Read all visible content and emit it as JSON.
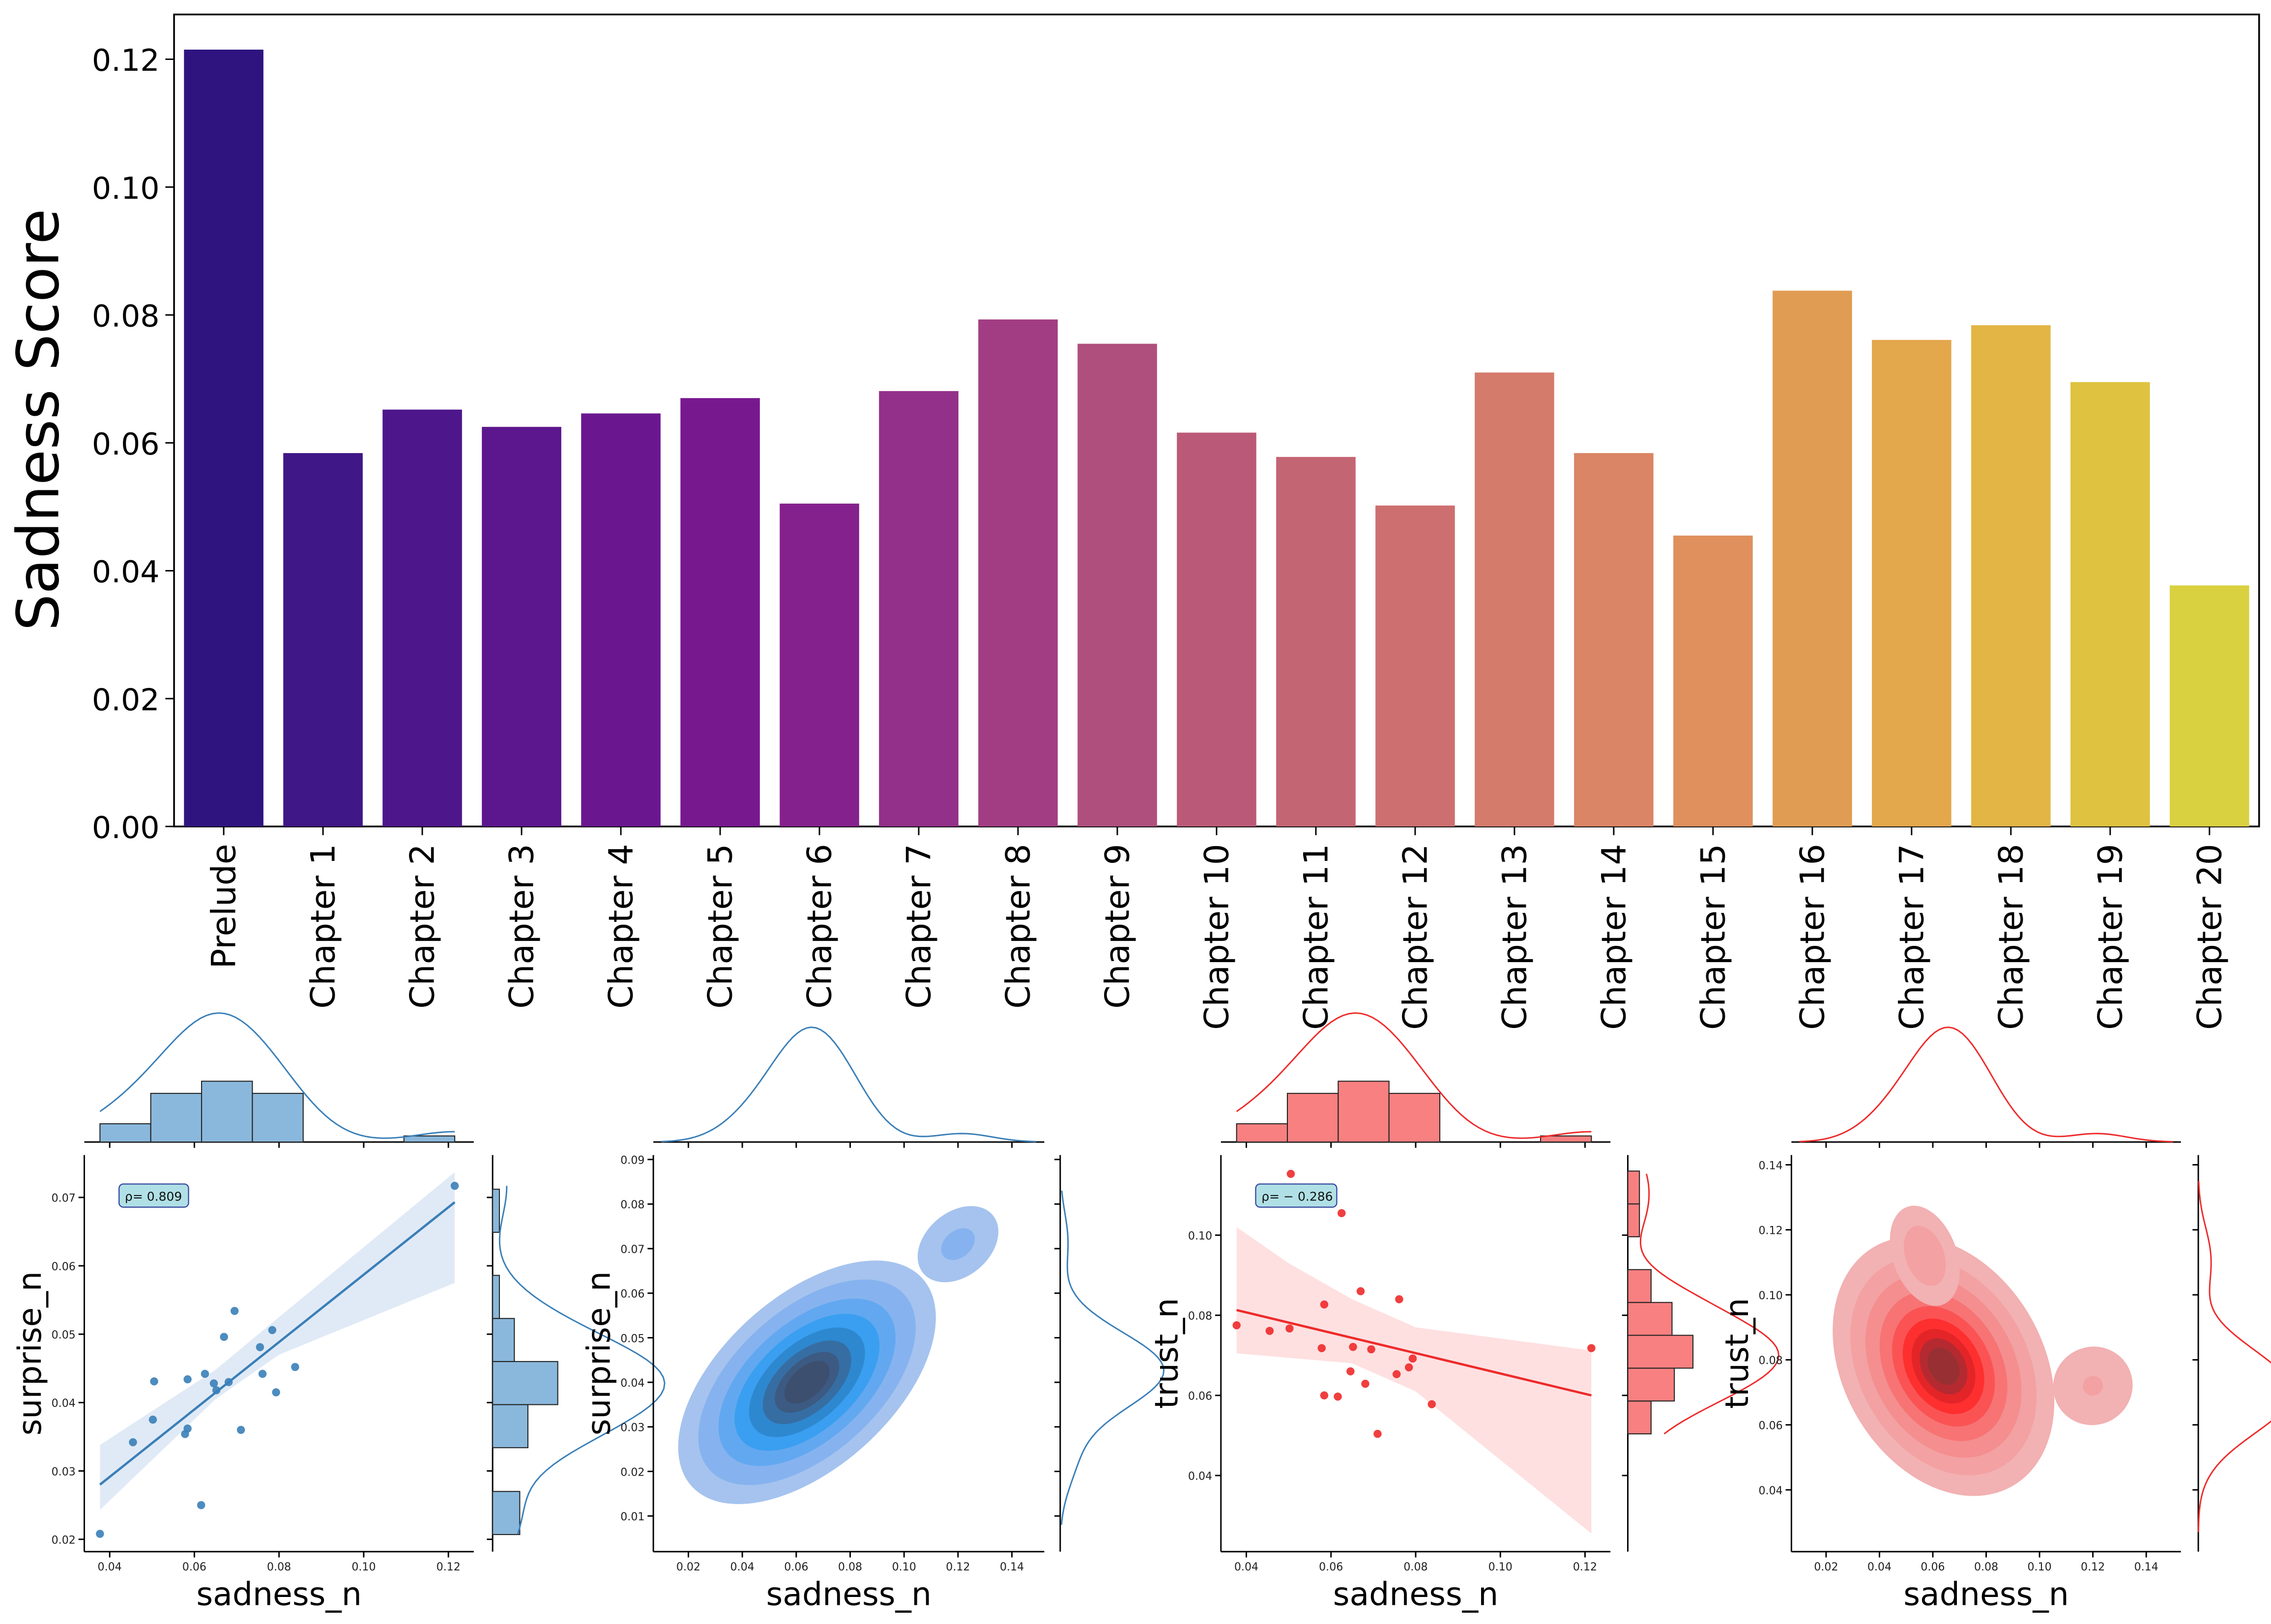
{
  "chart_data": [
    {
      "type": "bar",
      "title": "",
      "xlabel": "",
      "ylabel": "Sadness Score",
      "ylim": [
        0,
        0.127
      ],
      "yticks": [
        "0.00",
        "0.02",
        "0.04",
        "0.06",
        "0.08",
        "0.10",
        "0.12"
      ],
      "categories": [
        "Prelude",
        "Chapter 1",
        "Chapter 2",
        "Chapter 3",
        "Chapter 4",
        "Chapter 5",
        "Chapter 6",
        "Chapter 7",
        "Chapter 8",
        "Chapter 9",
        "Chapter 10",
        "Chapter 11",
        "Chapter 12",
        "Chapter 13",
        "Chapter 14",
        "Chapter 15",
        "Chapter 16",
        "Chapter 17",
        "Chapter 18",
        "Chapter 19",
        "Chapter 20"
      ],
      "values": [
        0.1215,
        0.0584,
        0.0652,
        0.0625,
        0.0646,
        0.067,
        0.0505,
        0.0681,
        0.0793,
        0.0755,
        0.0616,
        0.0578,
        0.0502,
        0.071,
        0.0584,
        0.0455,
        0.0838,
        0.0761,
        0.0784,
        0.0695,
        0.0377
      ],
      "colors": [
        "#2f1480",
        "#3f1787",
        "#4e168b",
        "#5c168e",
        "#6a178f",
        "#78188f",
        "#85218c",
        "#933089",
        "#a23d84",
        "#af4f7e",
        "#bb5a78",
        "#c46574",
        "#cd6f70",
        "#d57b6c",
        "#da8565",
        "#df905d",
        "#e19c53",
        "#e3a74c",
        "#e2b545",
        "#dfc240",
        "#d9d140"
      ]
    },
    {
      "type": "scatter",
      "panel": "regression",
      "xlabel": "sadness_n",
      "ylabel": "surprise_n",
      "xticks": [
        "0.04",
        "0.06",
        "0.08",
        "0.10",
        "0.12"
      ],
      "yticks": [
        "0.02",
        "0.03",
        "0.04",
        "0.05",
        "0.06",
        "0.07"
      ],
      "xlim": [
        0.034,
        0.126
      ],
      "ylim": [
        0.0182,
        0.0762
      ],
      "annotation": "ρ= 0.809",
      "color": "#3a7fb8",
      "x": [
        0.1215,
        0.0584,
        0.0652,
        0.0625,
        0.0646,
        0.067,
        0.0505,
        0.0681,
        0.0793,
        0.0755,
        0.0616,
        0.0578,
        0.0502,
        0.071,
        0.0584,
        0.0455,
        0.0838,
        0.0761,
        0.0784,
        0.0695,
        0.0377
      ],
      "y": [
        0.0717,
        0.0434,
        0.0418,
        0.0442,
        0.0428,
        0.0496,
        0.0431,
        0.043,
        0.0415,
        0.0481,
        0.025,
        0.0354,
        0.0375,
        0.036,
        0.0362,
        0.0342,
        0.0452,
        0.0442,
        0.0506,
        0.0534,
        0.0208
      ],
      "regression": {
        "x0": 0.0377,
        "y0": 0.028,
        "x1": 0.1215,
        "y1": 0.0693
      },
      "ci_upper": [
        [
          0.0377,
          0.0338
        ],
        [
          0.065,
          0.0448
        ],
        [
          0.08,
          0.0525
        ],
        [
          0.1215,
          0.0737
        ]
      ],
      "ci_lower": [
        [
          0.0377,
          0.0243
        ],
        [
          0.065,
          0.0405
        ],
        [
          0.08,
          0.047
        ],
        [
          0.1215,
          0.0575
        ]
      ],
      "top_hist": {
        "bins": [
          [
            0.0377,
            0.0497,
            1.5
          ],
          [
            0.0497,
            0.0617,
            4
          ],
          [
            0.0617,
            0.0737,
            5
          ],
          [
            0.0737,
            0.0857,
            4
          ],
          [
            0.1095,
            0.1215,
            0.5
          ]
        ]
      },
      "right_hist": {
        "bins": [
          [
            0.0207,
            0.027,
            1
          ],
          [
            0.0334,
            0.0397,
            1.3
          ],
          [
            0.0397,
            0.046,
            2.4
          ],
          [
            0.046,
            0.0523,
            0.8
          ],
          [
            0.0523,
            0.0586,
            0.25
          ],
          [
            0.0649,
            0.0712,
            0.25
          ]
        ]
      }
    },
    {
      "type": "heatmap",
      "panel": "kde",
      "xlabel": "sadness_n",
      "ylabel": "surprise_n",
      "xticks": [
        "0.02",
        "0.04",
        "0.06",
        "0.08",
        "0.10",
        "0.12",
        "0.14"
      ],
      "yticks": [
        "0.01",
        "0.02",
        "0.03",
        "0.04",
        "0.05",
        "0.06",
        "0.07",
        "0.08",
        "0.09"
      ],
      "xlim": [
        0.007,
        0.152
      ],
      "ylim": [
        0.002,
        0.091
      ],
      "levels": [
        "#a5c3ee",
        "#86b3ef",
        "#62a8f0",
        "#3a9ff0",
        "#2d88d0",
        "#366ea3",
        "#3c5a82",
        "#3d4f6e"
      ]
    },
    {
      "type": "scatter",
      "panel": "regression",
      "xlabel": "sadness_n",
      "ylabel": "trust_n",
      "xticks": [
        "0.04",
        "0.06",
        "0.08",
        "0.10",
        "0.12"
      ],
      "yticks": [
        "0.04",
        "0.06",
        "0.08",
        "0.10"
      ],
      "xlim": [
        0.034,
        0.126
      ],
      "ylim": [
        0.021,
        0.12
      ],
      "annotation": "ρ= − 0.286",
      "color": "#ee2a2a",
      "x": [
        0.1215,
        0.0584,
        0.0652,
        0.0625,
        0.0646,
        0.067,
        0.0505,
        0.0681,
        0.0793,
        0.0755,
        0.0616,
        0.0578,
        0.0502,
        0.071,
        0.0584,
        0.0455,
        0.0838,
        0.0761,
        0.0784,
        0.0695,
        0.0377
      ],
      "y": [
        0.0718,
        0.0827,
        0.0721,
        0.1055,
        0.066,
        0.086,
        0.1153,
        0.0629,
        0.0692,
        0.0653,
        0.0597,
        0.0718,
        0.0767,
        0.0504,
        0.06,
        0.0761,
        0.0578,
        0.084,
        0.067,
        0.0715,
        0.0775
      ],
      "regression": {
        "x0": 0.0377,
        "y0": 0.0813,
        "x1": 0.1215,
        "y1": 0.06
      },
      "ci_upper": [
        [
          0.0377,
          0.102
        ],
        [
          0.05,
          0.093
        ],
        [
          0.065,
          0.084
        ],
        [
          0.08,
          0.077
        ],
        [
          0.1215,
          0.0712
        ]
      ],
      "ci_lower": [
        [
          0.0377,
          0.0705
        ],
        [
          0.065,
          0.068
        ],
        [
          0.08,
          0.061
        ],
        [
          0.1215,
          0.0255
        ]
      ],
      "top_hist": {
        "bins": [
          [
            0.0377,
            0.0497,
            1.5
          ],
          [
            0.0497,
            0.0617,
            4
          ],
          [
            0.0617,
            0.0737,
            5
          ],
          [
            0.0737,
            0.0857,
            4
          ],
          [
            0.1095,
            0.1215,
            0.5
          ]
        ]
      },
      "right_hist": {
        "bins": [
          [
            0.0504,
            0.0586,
            1
          ],
          [
            0.0586,
            0.0668,
            2
          ],
          [
            0.0668,
            0.075,
            2.8
          ],
          [
            0.075,
            0.0832,
            1.9
          ],
          [
            0.0832,
            0.0914,
            1
          ],
          [
            0.0996,
            0.1078,
            0.5
          ],
          [
            0.1078,
            0.116,
            0.5
          ]
        ]
      }
    },
    {
      "type": "heatmap",
      "panel": "kde",
      "xlabel": "sadness_n",
      "ylabel": "trust_n",
      "xticks": [
        "0.02",
        "0.04",
        "0.06",
        "0.08",
        "0.10",
        "0.12",
        "0.14"
      ],
      "yticks": [
        "0.04",
        "0.06",
        "0.08",
        "0.10",
        "0.12",
        "0.14"
      ],
      "xlim": [
        0.007,
        0.153
      ],
      "ylim": [
        0.021,
        0.143
      ],
      "levels": [
        "#f2b1b2",
        "#f3a1a2",
        "#f48e8f",
        "#f77374",
        "#fb5354",
        "#fe2f2f",
        "#e32528",
        "#b52a30",
        "#983033"
      ]
    }
  ]
}
